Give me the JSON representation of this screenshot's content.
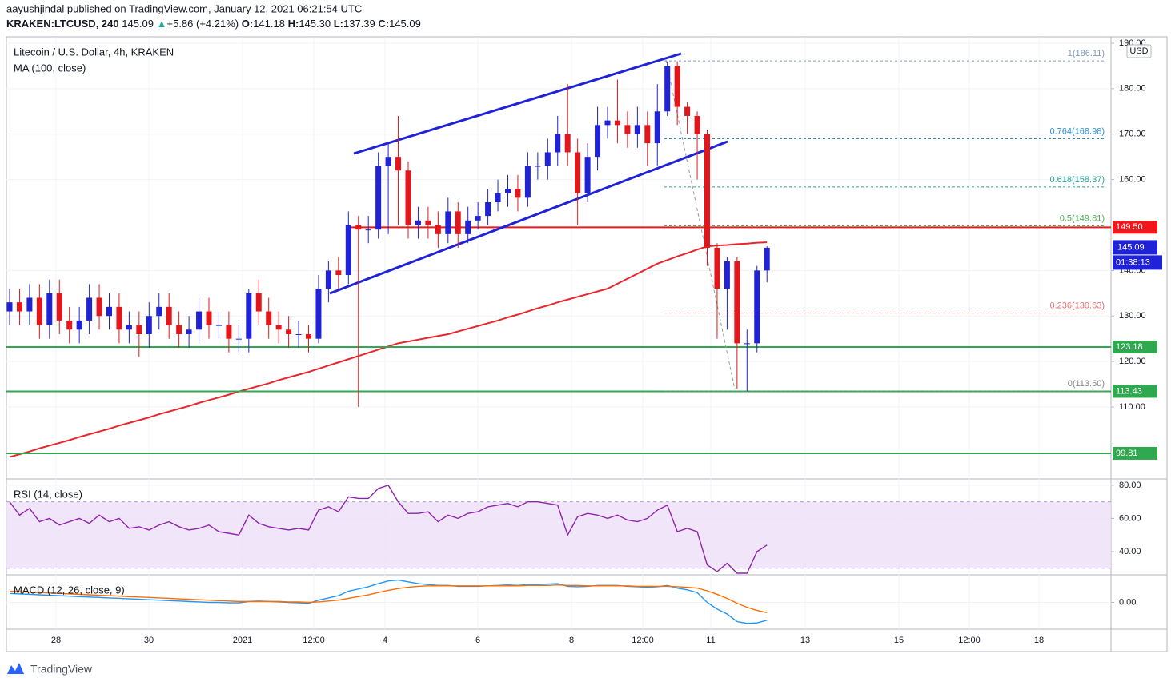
{
  "header": {
    "publisher": "aayushjindal published on TradingView.com, January 12, 2021 06:21:54 UTC",
    "symbol": "KRAKEN:LTCUSD, 240",
    "last": "145.09",
    "arrow": "▲",
    "change": "+5.86 (+4.21%)",
    "ohlc": [
      {
        "key": "O:",
        "value": "141.18"
      },
      {
        "key": "H:",
        "value": "145.30"
      },
      {
        "key": "L:",
        "value": "137.39"
      },
      {
        "key": "C:",
        "value": "145.09"
      }
    ]
  },
  "footer": {
    "brand": "TradingView"
  },
  "chart_data": [
    {
      "type": "candlestick",
      "title": "Litecoin / U.S. Dollar, 4h, KRAKEN",
      "currency": "USD",
      "up_color": "#1f22d6",
      "down_color": "#e3161b",
      "open": [
        131,
        133,
        131,
        134,
        128,
        135,
        129,
        127,
        129,
        134,
        130,
        132,
        127,
        128,
        126,
        130,
        132,
        128,
        126,
        127,
        131,
        128,
        128,
        125,
        125,
        135,
        131,
        128,
        127,
        126,
        126,
        125,
        136,
        140,
        139,
        150,
        149,
        149,
        163,
        165,
        162,
        150,
        151,
        150,
        148,
        153,
        148,
        151,
        152,
        155,
        157,
        158,
        156,
        163,
        163,
        166,
        170,
        166,
        157,
        165,
        172,
        173,
        172,
        170,
        172,
        168,
        175,
        185,
        176,
        174,
        170,
        145,
        136,
        142,
        124,
        124,
        140
      ],
      "high": [
        136,
        136,
        137,
        137,
        138,
        138,
        132,
        132,
        137,
        137,
        135,
        135,
        131,
        131,
        133,
        135,
        135,
        131,
        130,
        134,
        134,
        131,
        131,
        128,
        136,
        138,
        134,
        131,
        130,
        129,
        128,
        139,
        142,
        143,
        153,
        152,
        152,
        166,
        168,
        174,
        164,
        154,
        154,
        153,
        156,
        155,
        154,
        155,
        158,
        160,
        161,
        161,
        166,
        166,
        169,
        174,
        181,
        169,
        168,
        176,
        176,
        182,
        175,
        176,
        175,
        181,
        186,
        186,
        177,
        175,
        171,
        146,
        143,
        143,
        127,
        141,
        145.3
      ],
      "low": [
        128,
        128,
        128,
        125,
        125,
        126,
        124,
        124,
        126,
        127,
        127,
        124,
        124,
        121,
        123,
        127,
        125,
        123,
        123,
        124,
        125,
        125,
        122,
        122,
        122,
        128,
        125,
        124,
        123,
        123,
        122,
        124,
        133,
        136,
        137,
        110,
        146,
        147,
        148,
        150,
        147,
        147,
        147,
        145,
        146,
        145,
        146,
        149,
        150,
        153,
        154,
        153,
        154,
        160,
        160,
        163,
        163,
        150,
        155,
        162,
        169,
        168,
        167,
        167,
        163,
        163,
        174,
        172,
        170,
        160,
        141,
        125,
        127,
        114,
        113.5,
        122,
        137.4
      ],
      "close": [
        133,
        131,
        134,
        128,
        135,
        129,
        127,
        129,
        134,
        130,
        132,
        127,
        128,
        126,
        130,
        132,
        128,
        126,
        127,
        131,
        128,
        128,
        125,
        125,
        135,
        131,
        128,
        127,
        126,
        126,
        125,
        136,
        140,
        139,
        150,
        149,
        149,
        163,
        165,
        162,
        150,
        151,
        150,
        148,
        153,
        148,
        151,
        152,
        155,
        157,
        158,
        156,
        163,
        163,
        166,
        170,
        166,
        157,
        165,
        172,
        173,
        172,
        170,
        172,
        168,
        175,
        185,
        176,
        174,
        170,
        145,
        136,
        142,
        124,
        124,
        140,
        145
      ],
      "ma": {
        "name": "MA (100, close)",
        "color": "#e8262b",
        "values": [
          99,
          99.6,
          100.2,
          100.9,
          101.5,
          102.1,
          102.7,
          103.4,
          104,
          104.6,
          105.2,
          105.9,
          106.5,
          107.1,
          107.7,
          108.4,
          109,
          109.6,
          110.2,
          110.9,
          111.5,
          112.1,
          112.7,
          113.4,
          114,
          114.6,
          115.2,
          115.9,
          116.5,
          117.1,
          117.7,
          118.4,
          119.1,
          119.8,
          120.5,
          121.2,
          121.9,
          122.6,
          123.3,
          124,
          124.4,
          124.8,
          125.2,
          125.6,
          126,
          126.6,
          127.2,
          127.8,
          128.4,
          129,
          129.7,
          130.3,
          131,
          131.7,
          132.3,
          133,
          133.6,
          134.2,
          134.8,
          135.4,
          136,
          137.1,
          138.2,
          139.3,
          140.4,
          141.5,
          142.3,
          143.1,
          143.8,
          144.6,
          145.3,
          145.5,
          145.6,
          145.8,
          145.9,
          146.1,
          146.2
        ]
      },
      "ylim": [
        94.35,
        191.4
      ],
      "yticks": [
        {
          "value": 110,
          "label": "110.00"
        },
        {
          "value": 120,
          "label": "120.00"
        },
        {
          "value": 130,
          "label": "130.00"
        },
        {
          "value": 140,
          "label": "140.00"
        },
        {
          "value": 160,
          "label": "160.00"
        },
        {
          "value": 170,
          "label": "170.00"
        },
        {
          "value": 180,
          "label": "180.00"
        },
        {
          "value": 190,
          "label": "190.00"
        }
      ],
      "levels": [
        {
          "value": 149.5,
          "label": "149.50",
          "color": "#f0161b"
        },
        {
          "value": 123.18,
          "label": "123.18",
          "color": "#2fa84f"
        },
        {
          "value": 113.43,
          "label": "113.43",
          "color": "#2fa84f"
        },
        {
          "value": 99.81,
          "label": "99.81",
          "color": "#2fa84f"
        }
      ],
      "fib": [
        {
          "value": 186.11,
          "label": "1(186.11)",
          "color": "#7e9cc0"
        },
        {
          "value": 168.98,
          "label": "0.764(168.98)",
          "color": "#2c8fd6"
        },
        {
          "value": 158.37,
          "label": "0.618(158.37)",
          "color": "#26a69a"
        },
        {
          "value": 149.81,
          "label": "0.5(149.81)",
          "color": "#4caf50"
        },
        {
          "value": 130.63,
          "label": "0.236(130.63)",
          "color": "#e57373"
        },
        {
          "value": 113.5,
          "label": "0(113.50)",
          "color": "#888888"
        }
      ],
      "last_price": {
        "value": 145.09,
        "label": "145.09",
        "countdown": "01:38:13",
        "color": "#1f22d6"
      },
      "x_labels": [
        "28",
        "30",
        "2021",
        "12:00",
        "4",
        "6",
        "8",
        "12:00",
        "11",
        "13",
        "15",
        "12:00",
        "18"
      ]
    },
    {
      "type": "line",
      "title": "RSI (14, close)",
      "band": [
        30,
        70
      ],
      "series": [
        {
          "name": "RSI",
          "color": "#8e24aa",
          "values": [
            70,
            62,
            66,
            58,
            60,
            56,
            58,
            60,
            57,
            62,
            58,
            60,
            54,
            55,
            53,
            56,
            58,
            55,
            53,
            54,
            56,
            52,
            51,
            50,
            62,
            57,
            55,
            54,
            53,
            54,
            53,
            65,
            67,
            64,
            73,
            72,
            72,
            78,
            80,
            70,
            63,
            63,
            64,
            58,
            62,
            60,
            63,
            64,
            67,
            68,
            69,
            67,
            70,
            70,
            69,
            68,
            50,
            61,
            63,
            62,
            60,
            62,
            59,
            58,
            60,
            65,
            68,
            52,
            54,
            52,
            32,
            28,
            33,
            27,
            27,
            40,
            44
          ]
        }
      ],
      "ylim": [
        27,
        83.3
      ],
      "yticks": [
        {
          "value": 40,
          "label": "40.00"
        },
        {
          "value": 60,
          "label": "60.00"
        },
        {
          "value": 80,
          "label": "80.00"
        }
      ]
    },
    {
      "type": "line",
      "title": "MACD (12, 26, close, 9)",
      "series": [
        {
          "name": "MACD",
          "color": "#2196f3",
          "values": [
            2,
            1.9,
            1.8,
            1.7,
            1.6,
            1.5,
            1.4,
            1.3,
            1.2,
            1.1,
            1,
            0.9,
            0.8,
            0.7,
            0.6,
            0.5,
            0.4,
            0.3,
            0.2,
            0.1,
            0,
            0,
            -0.1,
            -0.1,
            0.2,
            0.3,
            0.2,
            0.1,
            0,
            -0.1,
            -0.2,
            0.5,
            1,
            1.5,
            2.5,
            3,
            3.5,
            4.2,
            4.8,
            5,
            4.6,
            4.2,
            4,
            3.8,
            3.8,
            3.6,
            3.6,
            3.6,
            3.7,
            3.8,
            3.9,
            3.8,
            4,
            4,
            4.1,
            4.2,
            3.6,
            3.5,
            3.6,
            3.8,
            3.8,
            3.8,
            3.6,
            3.5,
            3.4,
            3.5,
            3.8,
            3.2,
            2.8,
            2.2,
            0,
            -1.5,
            -2.6,
            -4.3,
            -4.7,
            -4.6,
            -4
          ]
        },
        {
          "name": "Signal",
          "color": "#ff6d00",
          "values": [
            2.5,
            2.4,
            2.3,
            2.2,
            2.1,
            2,
            1.9,
            1.8,
            1.7,
            1.6,
            1.5,
            1.4,
            1.3,
            1.2,
            1.1,
            1,
            0.9,
            0.8,
            0.7,
            0.6,
            0.5,
            0.4,
            0.3,
            0.2,
            0.2,
            0.2,
            0.2,
            0.2,
            0.1,
            0.1,
            0,
            0.1,
            0.3,
            0.5,
            0.9,
            1.3,
            1.7,
            2.2,
            2.7,
            3.1,
            3.4,
            3.6,
            3.7,
            3.7,
            3.7,
            3.7,
            3.7,
            3.7,
            3.7,
            3.7,
            3.7,
            3.7,
            3.8,
            3.8,
            3.8,
            3.9,
            3.8,
            3.8,
            3.7,
            3.7,
            3.7,
            3.7,
            3.7,
            3.6,
            3.6,
            3.6,
            3.6,
            3.5,
            3.4,
            3.2,
            2.6,
            1.8,
            0.9,
            -0.2,
            -1.1,
            -1.8,
            -2.3
          ]
        }
      ],
      "ylim": [
        -6,
        6
      ],
      "yticks": [
        {
          "value": 0,
          "label": "0.00"
        }
      ]
    }
  ]
}
